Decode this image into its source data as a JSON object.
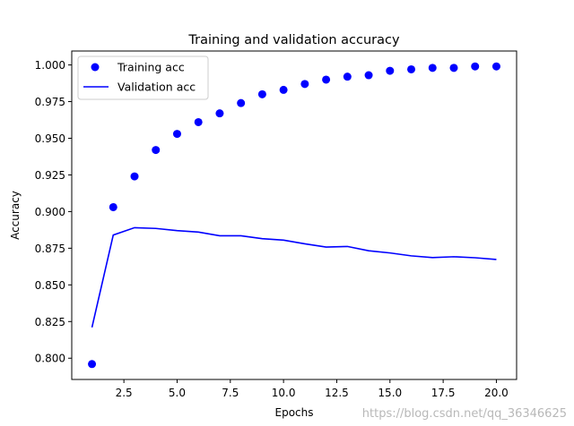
{
  "chart_data": {
    "type": "line",
    "title": "Training and validation accuracy",
    "xlabel": "Epochs",
    "ylabel": "Accuracy",
    "xlim": [
      0.05,
      20.95
    ],
    "ylim": [
      0.7855,
      1.0095
    ],
    "xticks": [
      2.5,
      5.0,
      7.5,
      10.0,
      12.5,
      15.0,
      17.5,
      20.0
    ],
    "xtick_labels": [
      "2.5",
      "5.0",
      "7.5",
      "10.0",
      "12.5",
      "15.0",
      "17.5",
      "20.0"
    ],
    "yticks": [
      0.8,
      0.825,
      0.85,
      0.875,
      0.9,
      0.925,
      0.95,
      0.975,
      1.0
    ],
    "ytick_labels": [
      "0.800",
      "0.825",
      "0.850",
      "0.875",
      "0.900",
      "0.925",
      "0.950",
      "0.975",
      "1.000"
    ],
    "legend_position": "top-left",
    "series": [
      {
        "name": "Training acc",
        "style": "markers",
        "color": "#0000ff",
        "x": [
          1,
          2,
          3,
          4,
          5,
          6,
          7,
          8,
          9,
          10,
          11,
          12,
          13,
          14,
          15,
          16,
          17,
          18,
          19,
          20
        ],
        "values": [
          0.796,
          0.903,
          0.924,
          0.942,
          0.953,
          0.961,
          0.967,
          0.974,
          0.98,
          0.983,
          0.987,
          0.99,
          0.992,
          0.993,
          0.996,
          0.997,
          0.998,
          0.998,
          0.999,
          0.999
        ]
      },
      {
        "name": "Validation acc",
        "style": "line",
        "color": "#0000ff",
        "x": [
          1,
          2,
          3,
          4,
          5,
          6,
          7,
          8,
          9,
          10,
          11,
          12,
          13,
          14,
          15,
          16,
          17,
          18,
          19,
          20
        ],
        "values": [
          0.821,
          0.884,
          0.889,
          0.8885,
          0.887,
          0.886,
          0.8835,
          0.8835,
          0.8815,
          0.8805,
          0.878,
          0.8758,
          0.8762,
          0.8733,
          0.8718,
          0.8698,
          0.8686,
          0.8692,
          0.8685,
          0.8673
        ]
      }
    ]
  },
  "watermark": "https://blog.csdn.net/qq_36346625"
}
